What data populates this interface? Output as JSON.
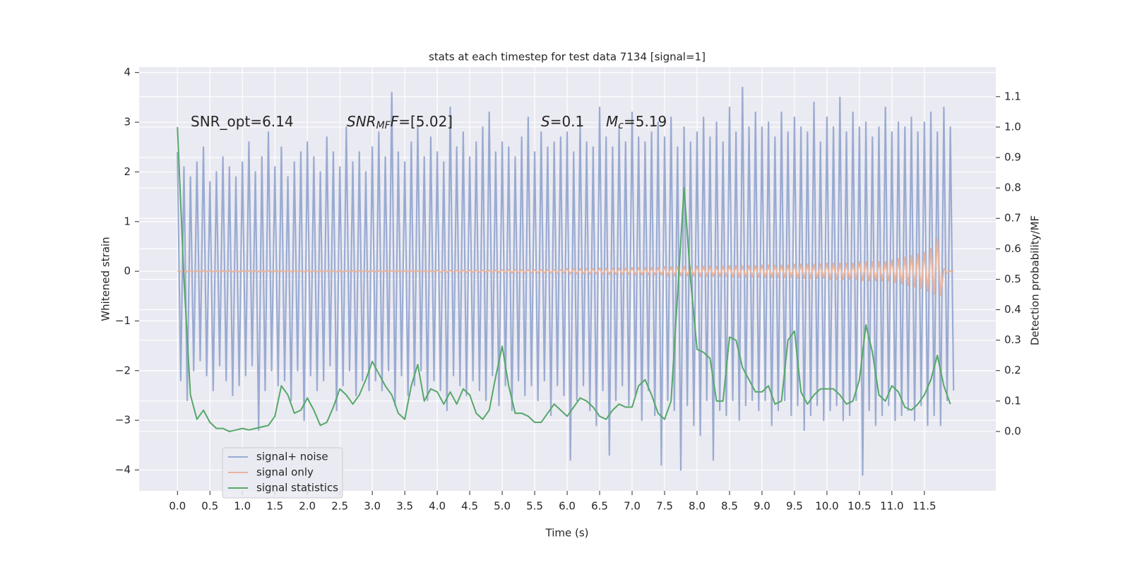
{
  "chart_data": {
    "type": "line",
    "title": "stats at each timestep for test data 7134 [signal=1]",
    "xlabel": "Time (s)",
    "ylabel": "Whitened strain",
    "y2label": "Detection probability/MF",
    "grid": true,
    "legend": "lower left",
    "xlim": [
      -0.59,
      12.6
    ],
    "ylim": [
      -4.42,
      4.11
    ],
    "y2lim": [
      -0.195,
      1.197
    ],
    "xticks": [
      {
        "value": 0,
        "label": "0.0"
      },
      0.5,
      {
        "value": 1,
        "label": "1.0"
      },
      1.5,
      {
        "value": 2,
        "label": "2.0"
      },
      2.5,
      {
        "value": 3,
        "label": "3.0"
      },
      3.5,
      {
        "value": 4,
        "label": "4.0"
      },
      4.5,
      {
        "value": 5,
        "label": "5.0"
      },
      5.5,
      {
        "value": 6,
        "label": "6.0"
      },
      6.5,
      {
        "value": 7,
        "label": "7.0"
      },
      7.5,
      {
        "value": 8,
        "label": "8.0"
      },
      8.5,
      {
        "value": 9,
        "label": "9.0"
      },
      9.5,
      {
        "value": 10,
        "label": "10.0"
      },
      10.5,
      {
        "value": 11,
        "label": "11.0"
      },
      11.5
    ],
    "yticks": [
      {
        "value": -4,
        "label": "−4"
      },
      {
        "value": -3,
        "label": "−3"
      },
      {
        "value": -2,
        "label": "−2"
      },
      {
        "value": -1,
        "label": "−1"
      },
      0,
      1,
      2,
      3,
      4
    ],
    "y2ticks": [
      {
        "value": 0,
        "label": "0.0"
      },
      0.1,
      0.2,
      0.3,
      0.4,
      0.5,
      0.6,
      0.7,
      0.8,
      0.9,
      {
        "value": 1,
        "label": "1.0"
      },
      1.1
    ],
    "annotations": [
      [
        {
          "text": "SNR_opt=6.14",
          "style": "normal"
        }
      ],
      [
        {
          "text": "SNR",
          "style": "italic"
        },
        {
          "text": "MF",
          "style": "sub"
        },
        {
          "text": "F",
          "style": "italic"
        },
        {
          "text": "=[5.02]",
          "style": "normal"
        }
      ],
      [
        {
          "text": "S",
          "style": "italic"
        },
        {
          "text": "=0.1",
          "style": "normal"
        }
      ],
      [
        {
          "text": "M",
          "style": "italic"
        },
        {
          "text": "c",
          "style": "sub"
        },
        {
          "text": "=5.19",
          "style": "normal"
        }
      ]
    ],
    "x": [
      0,
      0.05,
      0.1,
      0.15,
      0.2,
      0.25,
      0.3,
      0.35,
      0.4,
      0.45,
      0.5,
      0.55,
      0.6,
      0.65,
      0.7,
      0.75,
      0.8,
      0.85,
      0.9,
      0.95,
      1,
      1.05,
      1.1,
      1.15,
      1.2,
      1.25,
      1.3,
      1.35,
      1.4,
      1.45,
      1.5,
      1.55,
      1.6,
      1.65,
      1.7,
      1.75,
      1.8,
      1.85,
      1.9,
      1.95,
      2,
      2.05,
      2.1,
      2.15,
      2.2,
      2.25,
      2.3,
      2.35,
      2.4,
      2.45,
      2.5,
      2.55,
      2.6,
      2.65,
      2.7,
      2.75,
      2.8,
      2.85,
      2.9,
      2.95,
      3,
      3.05,
      3.1,
      3.15,
      3.2,
      3.25,
      3.3,
      3.35,
      3.4,
      3.45,
      3.5,
      3.55,
      3.6,
      3.65,
      3.7,
      3.75,
      3.8,
      3.85,
      3.9,
      3.95,
      4,
      4.05,
      4.1,
      4.15,
      4.2,
      4.25,
      4.3,
      4.35,
      4.4,
      4.45,
      4.5,
      4.55,
      4.6,
      4.65,
      4.7,
      4.75,
      4.8,
      4.85,
      4.9,
      4.95,
      5,
      5.05,
      5.1,
      5.15,
      5.2,
      5.25,
      5.3,
      5.35,
      5.4,
      5.45,
      5.5,
      5.55,
      5.6,
      5.65,
      5.7,
      5.75,
      5.8,
      5.85,
      5.9,
      5.95,
      6,
      6.05,
      6.1,
      6.15,
      6.2,
      6.25,
      6.3,
      6.35,
      6.4,
      6.45,
      6.5,
      6.55,
      6.6,
      6.65,
      6.7,
      6.75,
      6.8,
      6.85,
      6.9,
      6.95,
      7,
      7.05,
      7.1,
      7.15,
      7.2,
      7.25,
      7.3,
      7.35,
      7.4,
      7.45,
      7.5,
      7.55,
      7.6,
      7.65,
      7.7,
      7.75,
      7.8,
      7.85,
      7.9,
      7.95,
      8,
      8.05,
      8.1,
      8.15,
      8.2,
      8.25,
      8.3,
      8.35,
      8.4,
      8.45,
      8.5,
      8.55,
      8.6,
      8.65,
      8.7,
      8.75,
      8.8,
      8.85,
      8.9,
      8.95,
      9,
      9.05,
      9.1,
      9.15,
      9.2,
      9.25,
      9.3,
      9.35,
      9.4,
      9.45,
      9.5,
      9.55,
      9.6,
      9.65,
      9.7,
      9.75,
      9.8,
      9.85,
      9.9,
      9.95,
      10,
      10.05,
      10.1,
      10.15,
      10.2,
      10.25,
      10.3,
      10.35,
      10.4,
      10.45,
      10.5,
      10.55,
      10.6,
      10.65,
      10.7,
      10.75,
      10.8,
      10.85,
      10.9,
      10.95,
      11,
      11.05,
      11.1,
      11.15,
      11.2,
      11.25,
      11.3,
      11.35,
      11.4,
      11.45,
      11.5,
      11.55,
      11.6,
      11.65,
      11.7,
      11.75,
      11.8,
      11.85,
      11.9,
      11.95
    ],
    "series": [
      {
        "name": "signal+ noise",
        "color": "#9aabd1",
        "values": [
          2.4,
          -2.2,
          2.1,
          -2.6,
          1.9,
          -2.0,
          2.2,
          -1.8,
          2.5,
          -2.1,
          1.8,
          -2.4,
          2.0,
          -1.9,
          2.3,
          -2.2,
          2.1,
          -2.5,
          1.9,
          -2.3,
          2.2,
          -2.1,
          2.6,
          -1.9,
          2.0,
          -3.2,
          2.3,
          -2.4,
          2.8,
          -2.0,
          2.1,
          -2.3,
          2.5,
          -2.2,
          1.9,
          -2.6,
          2.2,
          -2.0,
          2.4,
          -3.0,
          2.6,
          -2.1,
          2.3,
          -2.4,
          2.0,
          -2.2,
          2.7,
          -1.9,
          2.4,
          -2.8,
          2.1,
          -2.3,
          2.9,
          -2.0,
          2.2,
          -2.5,
          2.4,
          -2.2,
          2.0,
          -2.4,
          2.5,
          -2.2,
          2.8,
          -2.4,
          2.3,
          -2.0,
          3.6,
          -2.7,
          2.4,
          -2.1,
          2.2,
          -2.5,
          2.6,
          -2.3,
          2.9,
          -2.0,
          2.3,
          -2.6,
          2.7,
          -2.2,
          2.4,
          -2.4,
          2.2,
          -2.8,
          3.3,
          -2.1,
          2.5,
          -2.3,
          2.8,
          -2.5,
          2.3,
          -2.2,
          2.6,
          -2.4,
          2.9,
          -2.6,
          3.2,
          -2.1,
          2.4,
          -2.7,
          2.6,
          -2.3,
          2.5,
          -2.8,
          2.3,
          -2.2,
          2.7,
          -2.5,
          3.1,
          -2.3,
          2.4,
          -2.6,
          2.8,
          -2.2,
          2.5,
          -2.9,
          2.6,
          -2.3,
          2.7,
          -2.5,
          2.8,
          -3.8,
          2.4,
          -2.6,
          3.0,
          -2.3,
          2.6,
          -2.8,
          2.5,
          -3.1,
          3.3,
          -2.4,
          2.7,
          -3.7,
          2.5,
          -2.6,
          2.9,
          -2.3,
          2.6,
          -2.7,
          3.2,
          -2.5,
          2.7,
          -3.0,
          2.6,
          -2.4,
          2.8,
          -2.9,
          3.0,
          -3.9,
          2.7,
          -2.6,
          3.1,
          -2.8,
          2.5,
          -4.0,
          2.9,
          -2.7,
          2.6,
          -3.1,
          2.8,
          -3.3,
          3.1,
          -2.6,
          2.7,
          -3.8,
          3.0,
          -2.8,
          2.6,
          -2.9,
          3.3,
          -2.6,
          2.8,
          -3.0,
          3.7,
          -2.7,
          2.9,
          -2.6,
          3.2,
          -2.8,
          2.9,
          -2.6,
          3.0,
          -3.1,
          2.7,
          -2.8,
          3.2,
          -2.6,
          2.8,
          -2.9,
          3.1,
          -2.7,
          2.9,
          -3.2,
          2.8,
          -2.9,
          3.4,
          -2.7,
          2.6,
          -3.0,
          3.1,
          -2.8,
          2.9,
          -2.7,
          3.5,
          -3.0,
          2.8,
          -2.9,
          3.2,
          -2.6,
          2.9,
          -4.1,
          3.0,
          -2.8,
          2.7,
          -3.1,
          2.9,
          -2.9,
          3.3,
          -2.7,
          2.8,
          -3.0,
          3.0,
          -2.9,
          2.9,
          -2.8,
          3.1,
          -3.0,
          2.8,
          -2.7,
          3.0,
          -3.1,
          3.2,
          -2.9,
          2.8,
          -3.1,
          3.3,
          -2.6,
          2.9,
          -2.4
        ]
      },
      {
        "name": "signal only",
        "color": "#e8b49e",
        "values": [
          0.01,
          -0.01,
          0.01,
          -0.01,
          0.01,
          -0.01,
          0.01,
          -0.01,
          0.01,
          -0.01,
          0.01,
          -0.01,
          0.01,
          -0.01,
          0.01,
          -0.01,
          0.01,
          -0.01,
          0.01,
          -0.01,
          0.01,
          -0.01,
          0.01,
          -0.01,
          0.01,
          -0.01,
          0.01,
          -0.01,
          0.01,
          -0.01,
          0.01,
          -0.01,
          0.01,
          -0.01,
          0.01,
          -0.01,
          0.01,
          -0.01,
          0.01,
          -0.01,
          0.01,
          -0.01,
          0.01,
          -0.01,
          0.01,
          -0.01,
          0.01,
          -0.01,
          0.01,
          -0.01,
          0.01,
          -0.01,
          0.01,
          -0.01,
          0.01,
          -0.01,
          0.01,
          -0.01,
          0.01,
          -0.01,
          0.01,
          -0.01,
          0.01,
          -0.01,
          0.01,
          -0.01,
          0.01,
          -0.01,
          0.01,
          -0.01,
          0.01,
          -0.01,
          0.01,
          -0.01,
          0.01,
          -0.01,
          0.01,
          -0.01,
          0.01,
          -0.01,
          0.02,
          -0.02,
          0.02,
          -0.02,
          0.02,
          -0.02,
          0.02,
          -0.02,
          0.02,
          -0.02,
          0.02,
          -0.02,
          0.02,
          -0.02,
          0.02,
          -0.02,
          0.02,
          -0.02,
          0.02,
          -0.02,
          0.03,
          -0.03,
          0.03,
          -0.03,
          0.03,
          -0.03,
          0.03,
          -0.03,
          0.03,
          -0.03,
          0.03,
          -0.03,
          0.03,
          -0.03,
          0.03,
          -0.03,
          0.03,
          -0.03,
          0.03,
          -0.03,
          0.05,
          -0.05,
          0.05,
          -0.05,
          0.05,
          -0.05,
          0.05,
          -0.05,
          0.05,
          -0.05,
          0.06,
          -0.06,
          0.06,
          -0.06,
          0.06,
          -0.06,
          0.06,
          -0.06,
          0.06,
          -0.06,
          0.07,
          -0.07,
          0.07,
          -0.07,
          0.07,
          -0.07,
          0.07,
          -0.07,
          0.07,
          -0.07,
          0.09,
          -0.09,
          0.09,
          -0.09,
          0.09,
          -0.09,
          0.09,
          -0.09,
          0.09,
          -0.09,
          0.1,
          -0.1,
          0.1,
          -0.1,
          0.1,
          -0.1,
          0.1,
          -0.1,
          0.1,
          -0.1,
          0.11,
          -0.11,
          0.11,
          -0.11,
          0.11,
          -0.11,
          0.11,
          -0.11,
          0.11,
          -0.11,
          0.12,
          -0.12,
          0.12,
          -0.12,
          0.12,
          -0.12,
          0.12,
          -0.12,
          0.12,
          -0.12,
          0.14,
          -0.14,
          0.14,
          -0.14,
          0.14,
          -0.14,
          0.14,
          -0.14,
          0.14,
          -0.14,
          0.16,
          -0.16,
          0.16,
          -0.16,
          0.16,
          -0.16,
          0.16,
          -0.16,
          0.16,
          -0.16,
          0.19,
          -0.19,
          0.19,
          -0.19,
          0.19,
          -0.19,
          0.19,
          -0.19,
          0.19,
          -0.19,
          0.22,
          -0.22,
          0.25,
          -0.25,
          0.28,
          -0.28,
          0.31,
          -0.31,
          0.34,
          -0.34,
          0.38,
          -0.4,
          0.45,
          -0.45,
          0.67,
          -0.48,
          0.05,
          -0.03,
          0.01,
          -0.01
        ]
      },
      {
        "name": "signal statistics",
        "color": "#55a868",
        "axis": "y2",
        "x": [
          0,
          0.1,
          0.2,
          0.3,
          0.4,
          0.5,
          0.6,
          0.7,
          0.8,
          0.9,
          1,
          1.1,
          1.2,
          1.3,
          1.4,
          1.5,
          1.6,
          1.7,
          1.8,
          1.9,
          2,
          2.1,
          2.2,
          2.3,
          2.4,
          2.5,
          2.6,
          2.7,
          2.8,
          2.9,
          3,
          3.1,
          3.2,
          3.3,
          3.4,
          3.5,
          3.6,
          3.7,
          3.8,
          3.9,
          4,
          4.1,
          4.2,
          4.3,
          4.4,
          4.5,
          4.6,
          4.7,
          4.8,
          4.9,
          5,
          5.1,
          5.2,
          5.3,
          5.4,
          5.5,
          5.6,
          5.7,
          5.8,
          5.9,
          6,
          6.1,
          6.2,
          6.3,
          6.4,
          6.5,
          6.6,
          6.7,
          6.8,
          6.9,
          7,
          7.1,
          7.2,
          7.3,
          7.4,
          7.5,
          7.6,
          7.7,
          7.8,
          7.9,
          8,
          8.1,
          8.2,
          8.3,
          8.4,
          8.5,
          8.6,
          8.7,
          8.8,
          8.9,
          9,
          9.1,
          9.2,
          9.3,
          9.4,
          9.5,
          9.6,
          9.7,
          9.8,
          9.9,
          10,
          10.1,
          10.2,
          10.3,
          10.4,
          10.5,
          10.6,
          10.7,
          10.8,
          10.9,
          11,
          11.1,
          11.2,
          11.3,
          11.4,
          11.5,
          11.6,
          11.7,
          11.8,
          11.9
        ],
        "values": [
          1.0,
          0.5,
          0.12,
          0.04,
          0.07,
          0.03,
          0.01,
          0.01,
          0.0,
          0.005,
          0.01,
          0.005,
          0.01,
          0.015,
          0.02,
          0.05,
          0.15,
          0.12,
          0.06,
          0.07,
          0.11,
          0.07,
          0.02,
          0.03,
          0.08,
          0.14,
          0.12,
          0.09,
          0.12,
          0.17,
          0.23,
          0.19,
          0.15,
          0.12,
          0.06,
          0.04,
          0.15,
          0.22,
          0.1,
          0.14,
          0.13,
          0.09,
          0.13,
          0.09,
          0.14,
          0.12,
          0.06,
          0.04,
          0.07,
          0.18,
          0.28,
          0.15,
          0.06,
          0.06,
          0.05,
          0.03,
          0.03,
          0.06,
          0.09,
          0.07,
          0.05,
          0.08,
          0.11,
          0.1,
          0.08,
          0.05,
          0.04,
          0.07,
          0.09,
          0.08,
          0.08,
          0.15,
          0.17,
          0.12,
          0.06,
          0.04,
          0.1,
          0.45,
          0.8,
          0.5,
          0.27,
          0.26,
          0.24,
          0.1,
          0.1,
          0.31,
          0.3,
          0.21,
          0.17,
          0.13,
          0.13,
          0.15,
          0.09,
          0.1,
          0.3,
          0.33,
          0.13,
          0.09,
          0.12,
          0.14,
          0.14,
          0.14,
          0.12,
          0.09,
          0.1,
          0.17,
          0.35,
          0.26,
          0.12,
          0.1,
          0.15,
          0.13,
          0.08,
          0.07,
          0.09,
          0.12,
          0.17,
          0.25,
          0.15,
          0.09
        ]
      }
    ]
  }
}
